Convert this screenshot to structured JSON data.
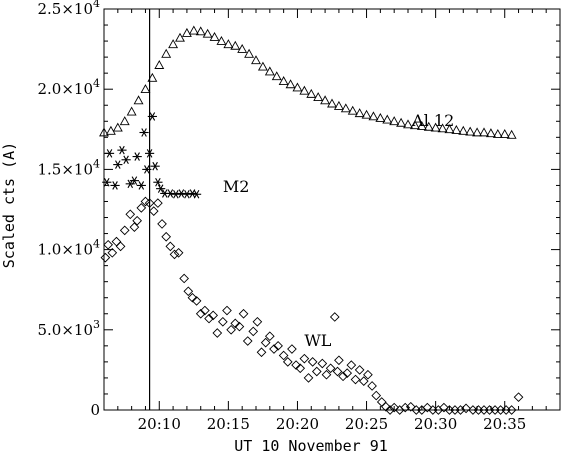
{
  "chart_data": {
    "type": "scatter",
    "xlabel": "UT 10 November 91",
    "ylabel": "Scaled cts (A)",
    "xlim": [
      6.0,
      39.0
    ],
    "ylim": [
      0,
      25000
    ],
    "x_ticks": [
      {
        "value": 10,
        "label": "20:10"
      },
      {
        "value": 15,
        "label": "20:15"
      },
      {
        "value": 20,
        "label": "20:20"
      },
      {
        "value": 25,
        "label": "20:25"
      },
      {
        "value": 30,
        "label": "20:30"
      },
      {
        "value": 35,
        "label": "20:35"
      }
    ],
    "y_ticks": [
      {
        "value": 0,
        "mantissa": "0",
        "exponent": ""
      },
      {
        "value": 5000,
        "mantissa": "5.0×10",
        "exponent": "3"
      },
      {
        "value": 10000,
        "mantissa": "1.0×10",
        "exponent": "4"
      },
      {
        "value": 15000,
        "mantissa": "1.5×10",
        "exponent": "4"
      },
      {
        "value": 20000,
        "mantissa": "2.0×10",
        "exponent": "4"
      },
      {
        "value": 25000,
        "mantissa": "2.5×10",
        "exponent": "4"
      }
    ],
    "vertical_line_x": 9.3,
    "series": [
      {
        "name": "Al 12",
        "marker": "triangle",
        "label_at": [
          28.3,
          17700
        ],
        "x": [
          6.0,
          6.5,
          7.0,
          7.5,
          8.0,
          8.5,
          9.0,
          9.5,
          10.0,
          10.5,
          11.0,
          11.5,
          12.0,
          12.5,
          13.0,
          13.5,
          14.0,
          14.5,
          15.0,
          15.5,
          16.0,
          16.5,
          17.0,
          17.5,
          18.0,
          18.5,
          19.0,
          19.5,
          20.0,
          20.5,
          21.0,
          21.5,
          22.0,
          22.5,
          23.0,
          23.5,
          24.0,
          24.5,
          25.0,
          25.5,
          26.0,
          26.5,
          27.0,
          27.5,
          28.0,
          28.5,
          29.0,
          29.5,
          30.0,
          30.5,
          31.0,
          31.5,
          32.0,
          32.5,
          33.0,
          33.5,
          34.0,
          34.5,
          35.0,
          35.5
        ],
        "y": [
          17300,
          17400,
          17600,
          18000,
          18600,
          19300,
          20000,
          20700,
          21500,
          22200,
          22800,
          23200,
          23500,
          23650,
          23600,
          23450,
          23250,
          23000,
          22800,
          22700,
          22500,
          22200,
          21800,
          21400,
          21100,
          20800,
          20500,
          20300,
          20100,
          19900,
          19700,
          19500,
          19300,
          19100,
          18950,
          18800,
          18650,
          18500,
          18400,
          18300,
          18200,
          18100,
          18000,
          17900,
          17800,
          17750,
          17700,
          17650,
          17600,
          17550,
          17500,
          17450,
          17400,
          17350,
          17300,
          17300,
          17250,
          17200,
          17200,
          17150
        ]
      },
      {
        "name": "M2",
        "marker": "star",
        "label_at": [
          14.6,
          13600
        ],
        "x": [
          6.2,
          6.4,
          6.8,
          7.0,
          7.3,
          7.6,
          7.9,
          8.2,
          8.4,
          8.7,
          8.9,
          9.1,
          9.3,
          9.5,
          9.7,
          9.9,
          10.1,
          10.4,
          10.8,
          11.2,
          11.6,
          12.0,
          12.4,
          12.7
        ],
        "y": [
          14200,
          16000,
          14000,
          15300,
          16200,
          15600,
          14100,
          14300,
          15800,
          14000,
          17300,
          15000,
          16000,
          18300,
          15200,
          14200,
          13800,
          13500,
          13500,
          13450,
          13500,
          13450,
          13500,
          13450
        ]
      },
      {
        "name": "WL",
        "marker": "diamond",
        "label_at": [
          20.5,
          4000
        ],
        "x": [
          6.1,
          6.3,
          6.6,
          6.9,
          7.2,
          7.5,
          7.9,
          8.2,
          8.4,
          8.7,
          9.0,
          9.3,
          9.6,
          9.9,
          10.2,
          10.5,
          10.8,
          11.1,
          11.4,
          11.8,
          12.1,
          12.4,
          12.7,
          13.0,
          13.3,
          13.6,
          13.9,
          14.2,
          14.6,
          14.9,
          15.2,
          15.5,
          15.8,
          16.1,
          16.4,
          16.8,
          17.1,
          17.4,
          17.7,
          18.0,
          18.3,
          18.6,
          19.0,
          19.3,
          19.6,
          19.9,
          20.2,
          20.5,
          20.8,
          21.1,
          21.4,
          21.8,
          22.1,
          22.4,
          22.7,
          22.9,
          23.0,
          23.3,
          23.6,
          23.9,
          24.2,
          24.5,
          24.8,
          25.1,
          25.4,
          25.7,
          26.1,
          26.4,
          26.7,
          27.0,
          27.4,
          27.8,
          28.2,
          28.6,
          29.0,
          29.4,
          29.8,
          30.2,
          30.6,
          31.0,
          31.4,
          31.8,
          32.2,
          32.7,
          33.1,
          33.5,
          33.9,
          34.3,
          34.7,
          35.1,
          35.5,
          36.0
        ],
        "y": [
          9500,
          10300,
          9800,
          10500,
          10200,
          11200,
          12200,
          11400,
          11800,
          12600,
          13000,
          12900,
          12400,
          12900,
          11600,
          10800,
          10200,
          9700,
          9800,
          8200,
          7400,
          7000,
          6800,
          6000,
          6200,
          5700,
          5900,
          4800,
          5500,
          6200,
          5000,
          5400,
          5200,
          6000,
          4300,
          4900,
          5500,
          3600,
          4200,
          4600,
          3800,
          4000,
          3400,
          3000,
          3800,
          2800,
          2600,
          3200,
          2000,
          3000,
          2400,
          2900,
          2200,
          2600,
          5800,
          2400,
          3100,
          2100,
          2300,
          2800,
          1900,
          2500,
          1800,
          2200,
          1500,
          900,
          500,
          200,
          0,
          150,
          0,
          150,
          200,
          0,
          0,
          150,
          0,
          0,
          150,
          0,
          0,
          0,
          100,
          0,
          0,
          0,
          0,
          0,
          0,
          0,
          0,
          800
        ]
      }
    ]
  }
}
